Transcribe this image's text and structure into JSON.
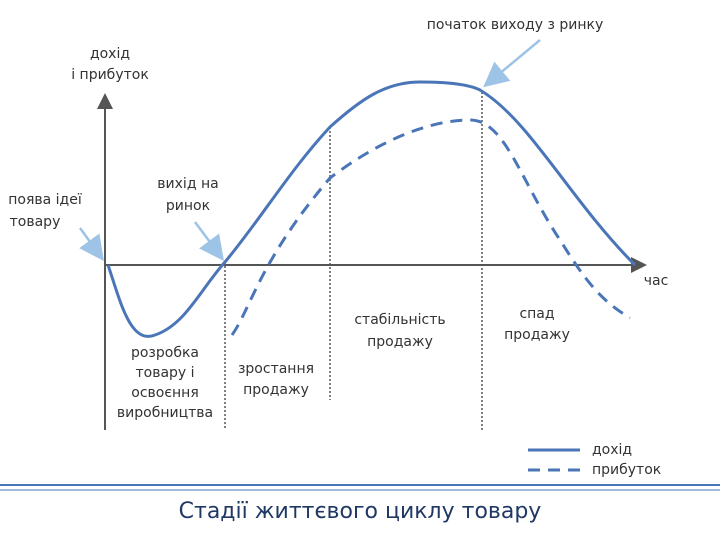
{
  "title": "Стадії життєвого циклу товару",
  "y_axis_label": [
    "дохід",
    "і прибуток"
  ],
  "x_axis_label": "час",
  "annotations": {
    "idea": [
      "поява ідеї",
      "товару"
    ],
    "market_entry": [
      "вихід на",
      "ринок"
    ],
    "exit_start": [
      "початок виходу з ринку"
    ]
  },
  "stages": [
    [
      "розробка",
      "товару і",
      "освоєння",
      "виробництва"
    ],
    [
      "зростання",
      "продажу"
    ],
    [
      "стабільність",
      "продажу"
    ],
    [
      "спад",
      "продажу"
    ]
  ],
  "legend": [
    "дохід",
    "прибуток"
  ]
}
